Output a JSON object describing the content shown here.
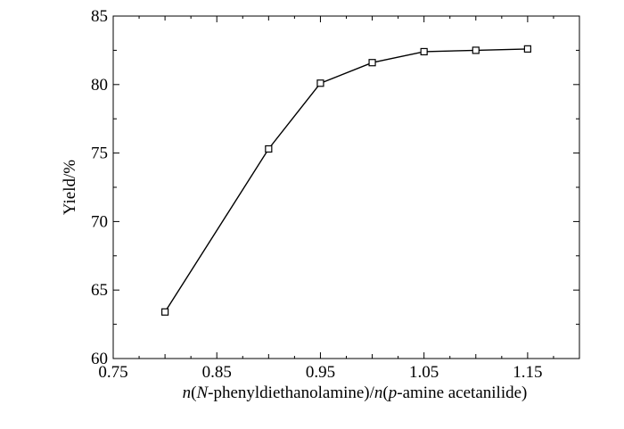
{
  "chart_data": {
    "type": "line",
    "xlabel_parts": [
      {
        "text": "n",
        "italic": true
      },
      {
        "text": "(",
        "italic": false
      },
      {
        "text": "N",
        "italic": true
      },
      {
        "text": "-phenyldiethanolamine)/",
        "italic": false
      },
      {
        "text": "n",
        "italic": true
      },
      {
        "text": "(",
        "italic": false
      },
      {
        "text": "p",
        "italic": true
      },
      {
        "text": "-amine acetanilide)",
        "italic": false
      }
    ],
    "ylabel": "Yield/%",
    "xlim": [
      0.75,
      1.2
    ],
    "ylim": [
      60,
      85
    ],
    "x_ticks": [
      "0.75",
      "0.85",
      "0.95",
      "1.05",
      "1.15"
    ],
    "y_ticks": [
      "60",
      "65",
      "70",
      "75",
      "80",
      "85"
    ],
    "grid": false,
    "marker": "open-square",
    "series": [
      {
        "x": [
          0.8,
          0.9,
          0.95,
          1.0,
          1.05,
          1.1,
          1.15
        ],
        "y": [
          63.4,
          75.3,
          80.1,
          81.6,
          82.4,
          82.5,
          82.6
        ]
      }
    ]
  }
}
